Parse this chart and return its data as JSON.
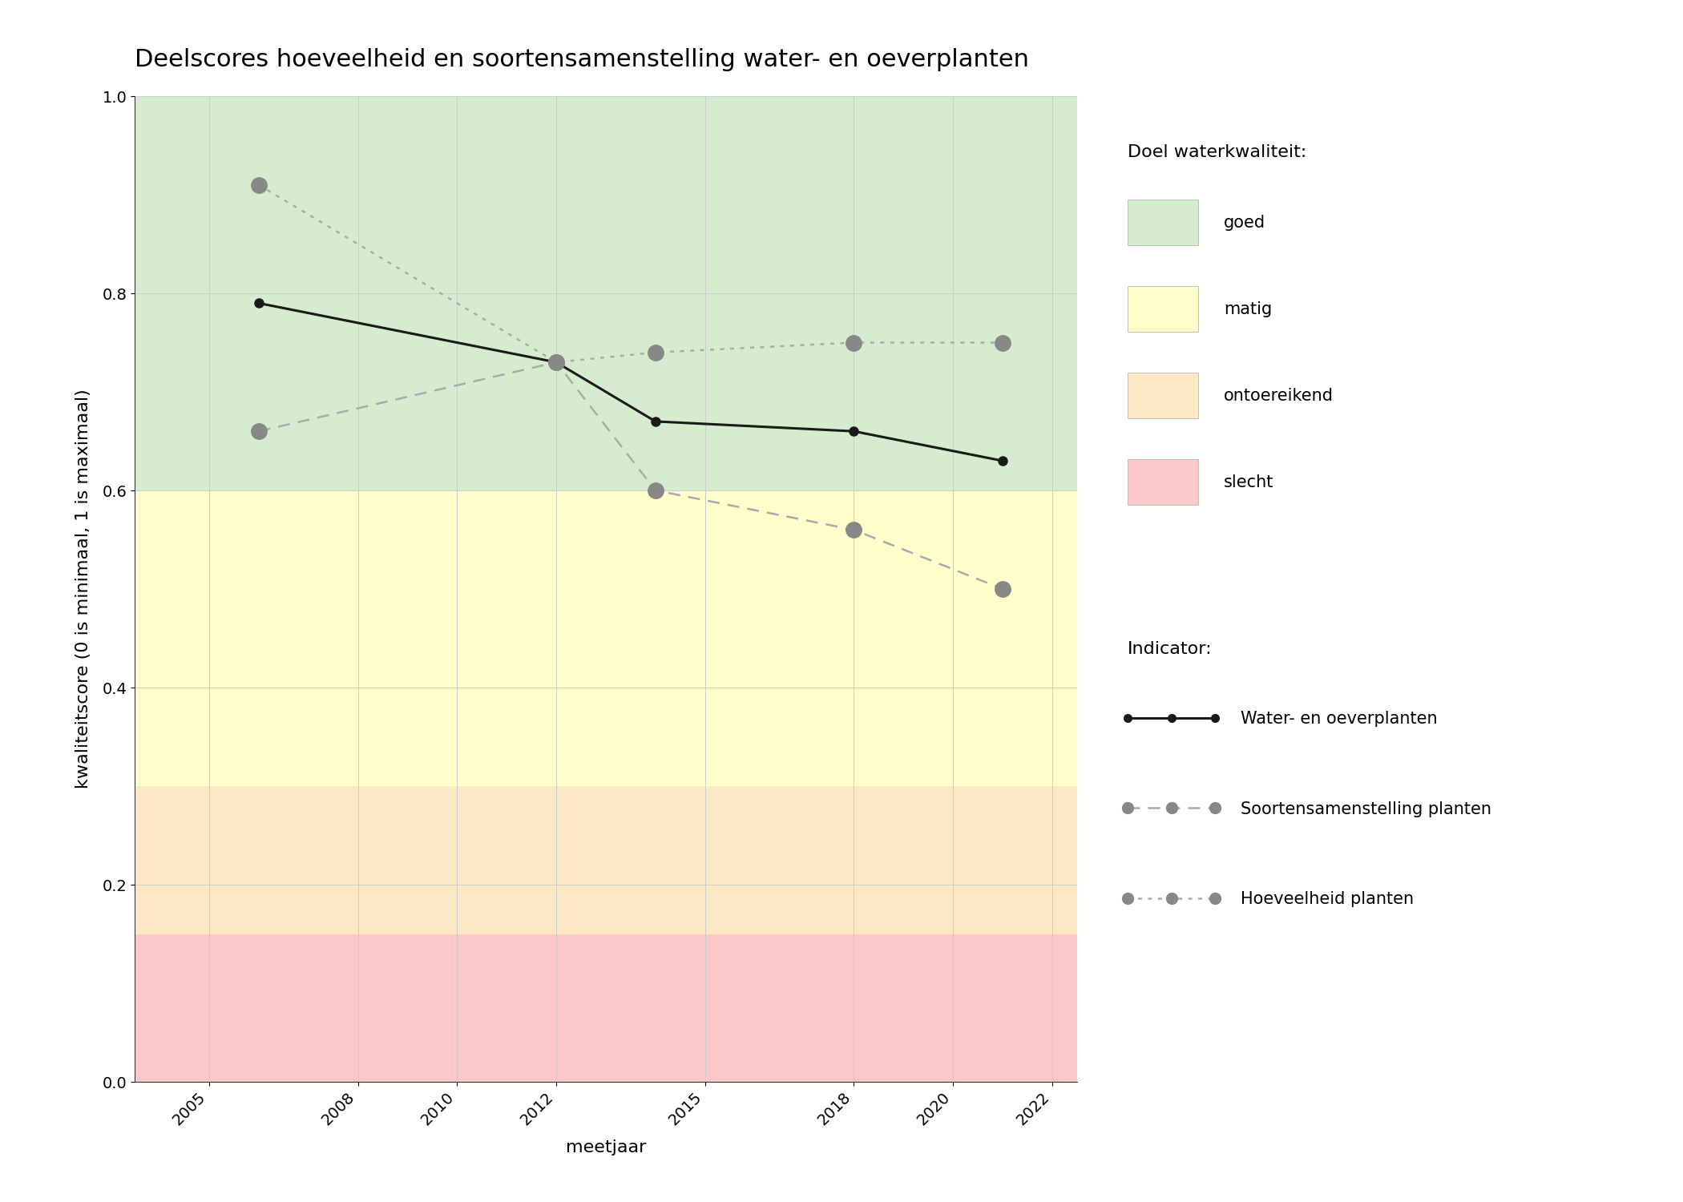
{
  "title": "Deelscores hoeveelheid en soortensamenstelling water- en oeverplanten",
  "xlabel": "meetjaar",
  "ylabel": "kwaliteitscore (0 is minimaal, 1 is maximaal)",
  "xlim": [
    2003.5,
    2022.5
  ],
  "ylim": [
    0.0,
    1.0
  ],
  "xticks": [
    2005,
    2008,
    2010,
    2012,
    2015,
    2018,
    2020,
    2022
  ],
  "yticks": [
    0.0,
    0.2,
    0.4,
    0.6,
    0.8,
    1.0
  ],
  "background_zones": [
    {
      "ymin": 0.6,
      "ymax": 1.0,
      "color": "#d5edce"
    },
    {
      "ymin": 0.3,
      "ymax": 0.6,
      "color": "#ffffcc"
    },
    {
      "ymin": 0.15,
      "ymax": 0.3,
      "color": "#fde8c4"
    },
    {
      "ymin": 0.0,
      "ymax": 0.15,
      "color": "#ffc8c8"
    }
  ],
  "lines": [
    {
      "name": "Water- en oeverplanten",
      "x": [
        2006,
        2012,
        2014,
        2018,
        2021
      ],
      "y": [
        0.79,
        0.73,
        0.67,
        0.66,
        0.63
      ],
      "color": "#1a1a1a",
      "linestyle": "solid",
      "linewidth": 2.2,
      "markersize": 8,
      "markercolor": "#1a1a1a"
    },
    {
      "name": "Soortensamenstelling planten",
      "x": [
        2006,
        2012,
        2014,
        2018,
        2021
      ],
      "y": [
        0.66,
        0.73,
        0.6,
        0.56,
        0.5
      ],
      "color": "#aaaaaa",
      "linestyle": "dashed",
      "linewidth": 1.8,
      "markersize": 14,
      "markercolor": "#888888"
    },
    {
      "name": "Hoeveelheid planten",
      "x": [
        2006,
        2012,
        2014,
        2018,
        2021
      ],
      "y": [
        0.91,
        0.73,
        0.74,
        0.75,
        0.75
      ],
      "color": "#aaaaaa",
      "linestyle": "dotted",
      "linewidth": 1.8,
      "markersize": 14,
      "markercolor": "#888888"
    }
  ],
  "legend_quality_colors": [
    "#d5edce",
    "#ffffcc",
    "#fde8c4",
    "#ffc8c8"
  ],
  "legend_quality_labels": [
    "goed",
    "matig",
    "ontoereikend",
    "slecht"
  ],
  "legend_doel_title": "Doel waterkwaliteit:",
  "legend_indicator_title": "Indicator:",
  "fig_bg": "#ffffff",
  "grid_color": "#cccccc",
  "title_fontsize": 22,
  "label_fontsize": 16,
  "tick_fontsize": 14,
  "legend_fontsize": 15
}
